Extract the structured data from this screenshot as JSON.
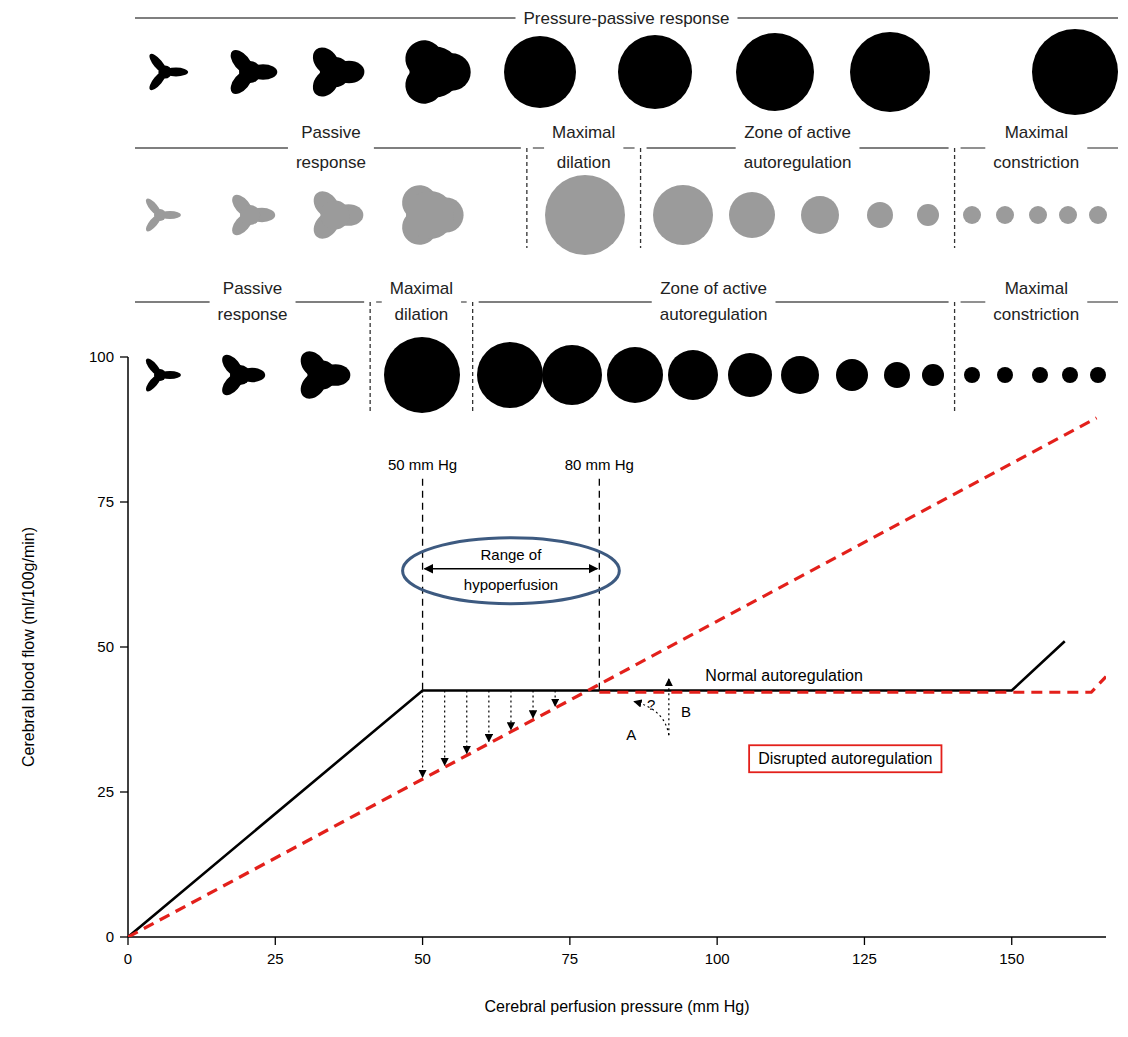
{
  "chart_data": {
    "type": "line",
    "x_label": "Cerebral perfusion pressure (mm Hg)",
    "y_label": "Cerebral blood flow (ml/100g/min)",
    "xlim": [
      0,
      166
    ],
    "xticks": [
      0,
      25,
      50,
      75,
      100,
      125,
      150
    ],
    "ylim": [
      0,
      100
    ],
    "yticks": [
      0,
      25,
      50,
      75,
      100
    ],
    "grid": false,
    "series": [
      {
        "name": "Normal autoregulation",
        "color": "#000000",
        "line_style": "solid",
        "x": [
          0,
          50,
          150,
          159
        ],
        "values": [
          0,
          42.5,
          42.5,
          51
        ]
      },
      {
        "name": "Disrupted autoregulation",
        "color": "#e3201b",
        "line_style": "dashed",
        "x": [
          0,
          164.4
        ],
        "values": [
          0,
          89.5
        ]
      },
      {
        "color": "#e3201b",
        "line_style": "dashed",
        "x": [
          80,
          163.5,
          166
        ],
        "values": [
          42.2,
          42.2,
          44.9
        ]
      }
    ],
    "reference_lines": [
      {
        "text": "50 mm Hg",
        "x": 50,
        "y": 79
      },
      {
        "text": "80 mm Hg",
        "x": 80,
        "y": 79
      }
    ],
    "range": {
      "text": "Range of hypoperfusion",
      "from": 50,
      "to": 80,
      "y": 63.5,
      "arrows_x": [
        50,
        53.75,
        57.5,
        61.25,
        65,
        68.75,
        72.5
      ]
    },
    "annotations": [
      {
        "text": "?",
        "x": 88.8,
        "y": 40
      },
      {
        "text": "A",
        "x": 85.4,
        "y": 34.8
      },
      {
        "text": "B",
        "x": 94.7,
        "y": 38.8
      }
    ],
    "arrows": [
      {
        "x": [
          91.8,
          91.8
        ],
        "y": [
          34.8,
          44.5
        ]
      },
      {
        "x": [
          91.8,
          85.9
        ],
        "y": [
          34.8,
          40.6
        ]
      }
    ]
  },
  "vessel_rows": [
    {
      "labels": [
        "Pressure-passive response"
      ],
      "boundaries": [],
      "color": "#000000"
    },
    {
      "labels": [
        "Passive response",
        "Maximal dilation",
        "Zone of active autoregulation",
        "Maximal constriction"
      ],
      "boundaries": [
        67.7,
        87,
        140.3
      ],
      "color": "#9b9b9b"
    },
    {
      "labels": [
        "Passive response",
        "Maximal dilation",
        "Zone of active autoregulation",
        "Maximal constriction"
      ],
      "boundaries": [
        41.1,
        58.5,
        140.3
      ],
      "color": "#000000"
    }
  ]
}
